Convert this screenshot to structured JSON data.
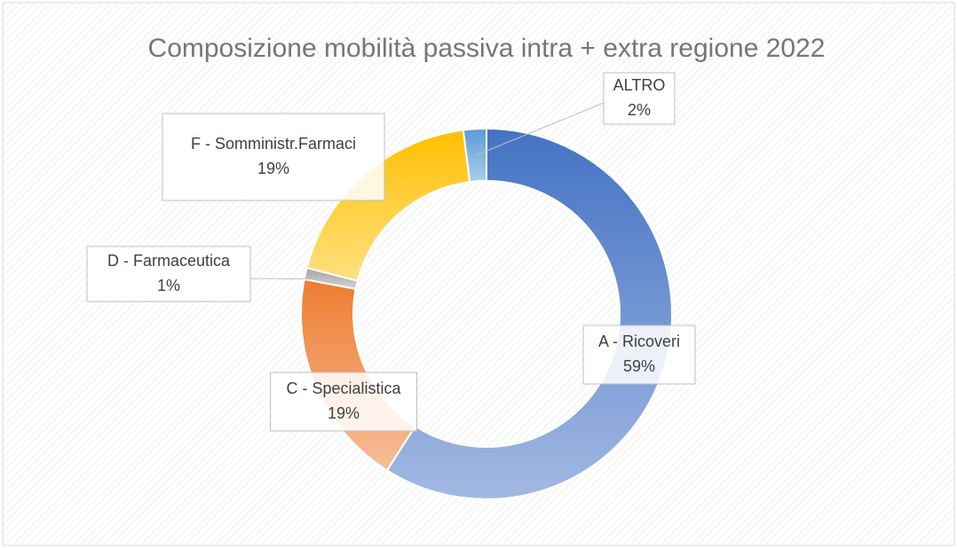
{
  "chart_data": {
    "type": "donut",
    "title": "Composizione mobilità passiva intra + extra regione 2022",
    "categories": [
      "A - Ricoveri",
      "C - Specialistica",
      "D - Farmaceutica",
      "F - Somministr.Farmaci",
      "ALTRO"
    ],
    "values": [
      59,
      19,
      1,
      19,
      2
    ],
    "value_labels": [
      "59%",
      "19%",
      "1%",
      "19%",
      "2%"
    ],
    "colors": [
      "#4472c4",
      "#ed7d31",
      "#a5a5a5",
      "#ffc000",
      "#5b9bd5"
    ]
  }
}
